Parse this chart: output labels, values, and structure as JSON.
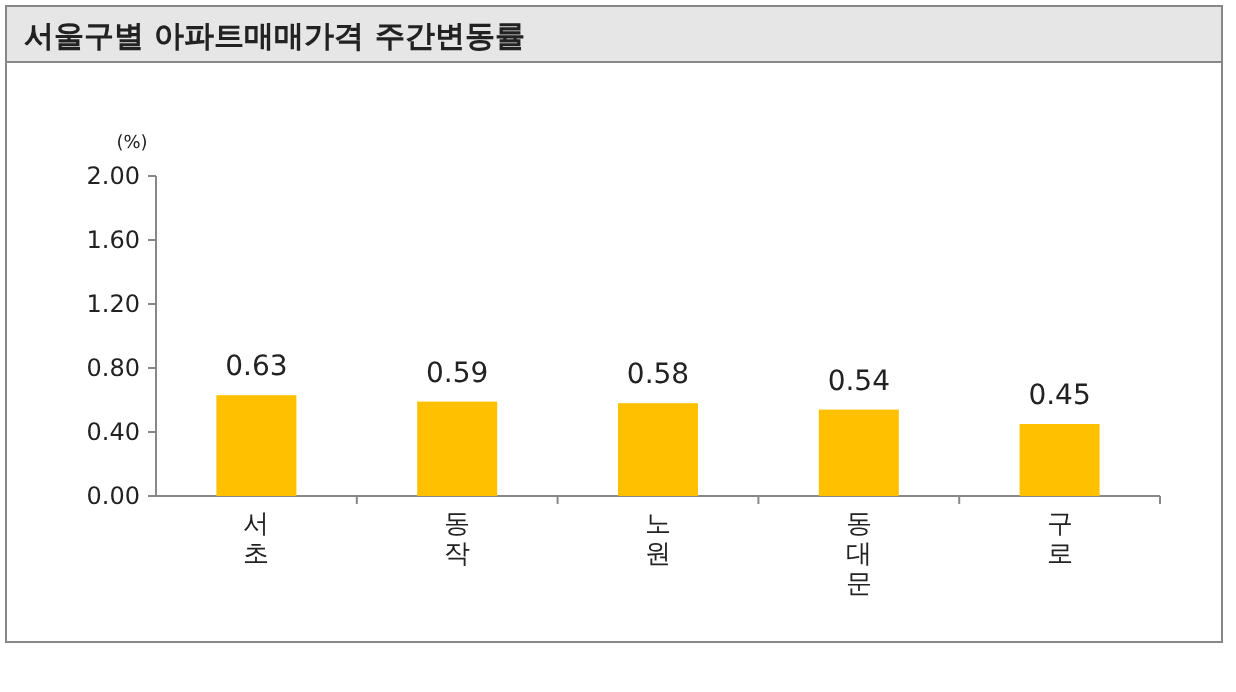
{
  "chart_data": {
    "type": "bar",
    "title": "서울구별 아파트매매가격 주간변동률",
    "ylabel": "(%)",
    "categories": [
      "서초",
      "동작",
      "노원",
      "동대문",
      "구로"
    ],
    "values": [
      0.63,
      0.59,
      0.58,
      0.54,
      0.45
    ],
    "color": "#ffc000",
    "ylim": [
      0,
      2
    ],
    "yticks": [
      {
        "value": 0,
        "label": "0.00"
      },
      {
        "value": 0.4,
        "label": "0.40"
      },
      {
        "value": 0.8,
        "label": "0.80"
      },
      {
        "value": 1.2,
        "label": "1.20"
      },
      {
        "value": 1.6,
        "label": "1.60"
      },
      {
        "value": 2,
        "label": "2.00"
      }
    ],
    "data_labels": true,
    "grid": false
  }
}
